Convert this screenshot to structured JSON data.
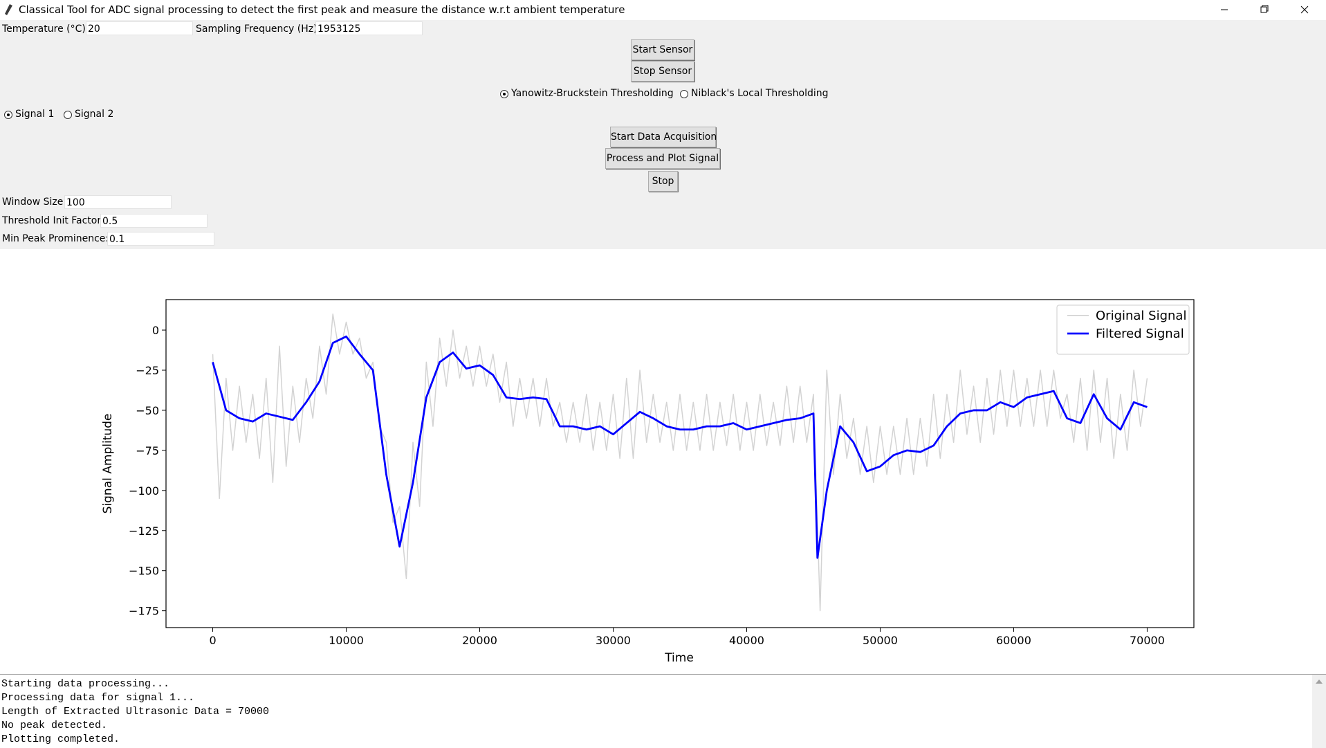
{
  "window": {
    "title": "Classical Tool for ADC signal processing to detect the first peak and measure the distance w.r.t ambient temperature"
  },
  "settings": {
    "temperature": {
      "label": "Temperature (°C):",
      "value": "20"
    },
    "sampling_frequency": {
      "label": "Sampling Frequency (Hz):",
      "value": "1953125"
    }
  },
  "sensor_buttons": [
    "Start Sensor",
    "Stop Sensor"
  ],
  "threshold_methods": {
    "options": [
      "Yanowitz-Bruckstein Thresholding",
      "Niblack's Local Thresholding"
    ],
    "selected": 0
  },
  "signals": {
    "options": [
      "Signal 1",
      "Signal 2"
    ],
    "selected": 0
  },
  "action_buttons": [
    "Start Data Acquisition",
    "Process and Plot Signal",
    "Stop"
  ],
  "parameters": [
    {
      "label": "Window Size:",
      "value": "100"
    },
    {
      "label": "Threshold Init Factor:",
      "value": "0.5"
    },
    {
      "label": "Min Peak Prominence:",
      "value": "0.1"
    }
  ],
  "chart_data": {
    "type": "line",
    "xlabel": "Time",
    "ylabel": "Signal Amplitude",
    "xlim": [
      -3500,
      73500
    ],
    "ylim": [
      -185.5,
      19
    ],
    "xticks": [
      0,
      10000,
      20000,
      30000,
      40000,
      50000,
      60000,
      70000
    ],
    "yticks": [
      {
        "value": 0,
        "label": "0"
      },
      {
        "value": -25,
        "label": "−25"
      },
      {
        "value": -50,
        "label": "−50"
      },
      {
        "value": -75,
        "label": "−75"
      },
      {
        "value": -100,
        "label": "−100"
      },
      {
        "value": -125,
        "label": "−125"
      },
      {
        "value": -150,
        "label": "−150"
      },
      {
        "value": -175,
        "label": "−175"
      }
    ],
    "legend": "upper right",
    "series": [
      {
        "name": "Original Signal",
        "color": "#d3d3d3",
        "x": [
          0,
          500,
          1000,
          1500,
          2000,
          2500,
          3000,
          3500,
          4000,
          4500,
          5000,
          5500,
          6000,
          6500,
          7000,
          7500,
          8000,
          8500,
          9000,
          9500,
          10000,
          10500,
          11000,
          11500,
          12000,
          12500,
          13000,
          13500,
          14000,
          14500,
          15000,
          15500,
          16000,
          16500,
          17000,
          17500,
          18000,
          18500,
          19000,
          19500,
          20000,
          20500,
          21000,
          21500,
          22000,
          22500,
          23000,
          23500,
          24000,
          24500,
          25000,
          25500,
          26000,
          26500,
          27000,
          27500,
          28000,
          28500,
          29000,
          29500,
          30000,
          30500,
          31000,
          31500,
          32000,
          32500,
          33000,
          33500,
          34000,
          34500,
          35000,
          35500,
          36000,
          36500,
          37000,
          37500,
          38000,
          38500,
          39000,
          39500,
          40000,
          40500,
          41000,
          41500,
          42000,
          42500,
          43000,
          43500,
          44000,
          44500,
          45000,
          45500,
          46000,
          46500,
          47000,
          47500,
          48000,
          48500,
          49000,
          49500,
          50000,
          50500,
          51000,
          51500,
          52000,
          52500,
          53000,
          53500,
          54000,
          54500,
          55000,
          55500,
          56000,
          56500,
          57000,
          57500,
          58000,
          58500,
          59000,
          59500,
          60000,
          60500,
          61000,
          61500,
          62000,
          62500,
          63000,
          63500,
          64000,
          64500,
          65000,
          65500,
          66000,
          66500,
          67000,
          67500,
          68000,
          68500,
          69000,
          69500,
          70000
        ],
        "values": [
          -15,
          -105,
          -30,
          -75,
          -35,
          -70,
          -40,
          -80,
          -30,
          -95,
          -10,
          -85,
          -35,
          -70,
          -30,
          -55,
          -10,
          -40,
          10,
          -15,
          5,
          -15,
          -5,
          -30,
          -20,
          -60,
          -70,
          -120,
          -110,
          -155,
          -70,
          -110,
          -20,
          -60,
          -5,
          -35,
          0,
          -30,
          -10,
          -35,
          -10,
          -35,
          -15,
          -45,
          -20,
          -60,
          -30,
          -55,
          -30,
          -60,
          -30,
          -60,
          -45,
          -70,
          -45,
          -70,
          -40,
          -75,
          -45,
          -75,
          -40,
          -80,
          -30,
          -80,
          -25,
          -70,
          -40,
          -70,
          -45,
          -75,
          -40,
          -75,
          -45,
          -75,
          -40,
          -75,
          -45,
          -72,
          -40,
          -75,
          -45,
          -75,
          -40,
          -72,
          -45,
          -72,
          -35,
          -70,
          -35,
          -70,
          -40,
          -175,
          -25,
          -90,
          -40,
          -80,
          -55,
          -90,
          -60,
          -95,
          -60,
          -90,
          -60,
          -90,
          -55,
          -90,
          -55,
          -85,
          -40,
          -80,
          -40,
          -70,
          -25,
          -65,
          -35,
          -70,
          -30,
          -65,
          -25,
          -60,
          -25,
          -60,
          -30,
          -60,
          -25,
          -60,
          -25,
          -55,
          -40,
          -70,
          -30,
          -75,
          -25,
          -70,
          -30,
          -80,
          -40,
          -75,
          -25,
          -60,
          -30
        ]
      },
      {
        "name": "Filtered Signal",
        "color": "#0000ff",
        "x": [
          0,
          1000,
          2000,
          3000,
          4000,
          5000,
          6000,
          7000,
          8000,
          9000,
          10000,
          11000,
          12000,
          13000,
          14000,
          15000,
          16000,
          17000,
          18000,
          19000,
          20000,
          21000,
          22000,
          23000,
          24000,
          25000,
          26000,
          27000,
          28000,
          29000,
          30000,
          31000,
          32000,
          33000,
          34000,
          35000,
          36000,
          37000,
          38000,
          39000,
          40000,
          41000,
          42000,
          43000,
          44000,
          45000,
          45300,
          46000,
          47000,
          48000,
          49000,
          50000,
          51000,
          52000,
          53000,
          54000,
          55000,
          56000,
          57000,
          58000,
          59000,
          60000,
          61000,
          62000,
          63000,
          64000,
          65000,
          66000,
          67000,
          68000,
          69000,
          70000
        ],
        "values": [
          -20,
          -50,
          -55,
          -57,
          -52,
          -54,
          -56,
          -45,
          -32,
          -8,
          -4,
          -15,
          -25,
          -90,
          -135,
          -95,
          -42,
          -20,
          -14,
          -24,
          -22,
          -28,
          -42,
          -43,
          -42,
          -43,
          -60,
          -60,
          -62,
          -60,
          -65,
          -58,
          -51,
          -55,
          -60,
          -62,
          -62,
          -60,
          -60,
          -58,
          -62,
          -60,
          -58,
          -56,
          -55,
          -52,
          -142,
          -100,
          -60,
          -70,
          -88,
          -85,
          -78,
          -75,
          -76,
          -72,
          -60,
          -52,
          -50,
          -50,
          -45,
          -48,
          -42,
          -40,
          -38,
          -55,
          -58,
          -40,
          -55,
          -62,
          -45,
          -48
        ]
      }
    ]
  },
  "console": {
    "lines": [
      "Starting data processing...",
      "Processing data for signal 1...",
      "Length of Extracted Ultrasonic Data = 70000",
      "No peak detected.",
      "Plotting completed."
    ]
  }
}
